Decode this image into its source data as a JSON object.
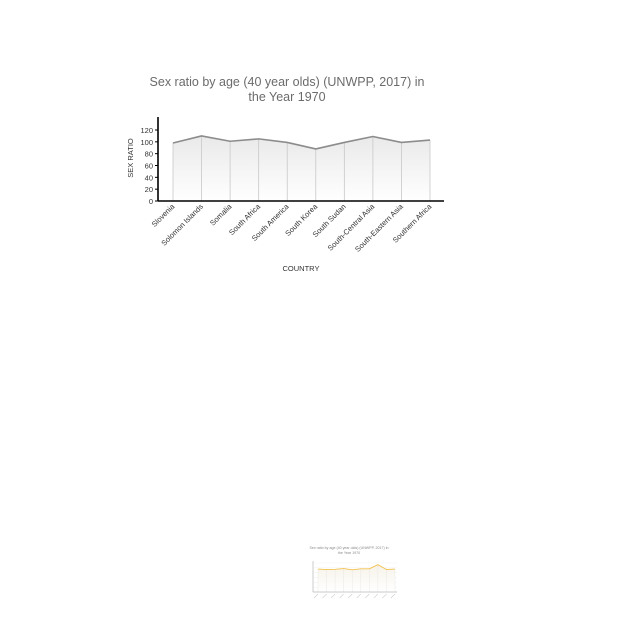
{
  "chart_data": [
    {
      "type": "area",
      "title": "Sex ratio by age (40 year olds) (UNWPP, 2017) in the Year 1970",
      "title_lines": [
        "Sex ratio by age (40 year olds) (UNWPP, 2017) in",
        "the Year 1970"
      ],
      "xlabel": "COUNTRY",
      "ylabel": "SEX RATIO",
      "categories": [
        "Slovenia",
        "Solomon Islands",
        "Somalia",
        "South Africa",
        "South America",
        "South Korea",
        "South Sudan",
        "South-Central Asia",
        "South-Eastern Asia",
        "Southern Africa"
      ],
      "series": [
        {
          "values": [
            98,
            110,
            101,
            105,
            99,
            88,
            99,
            109,
            99,
            103
          ]
        }
      ],
      "ylim": [
        0,
        120
      ],
      "yticks": [
        "0",
        "20",
        "40",
        "60",
        "80",
        "100",
        "120"
      ],
      "grid": false,
      "colors": {
        "line": "#8c8c8c",
        "fill_top": "#e9e9e9",
        "fill_bottom": "#ffffff",
        "axis": "#000000",
        "droplines": "#c8c8c8"
      }
    },
    {
      "type": "area",
      "title_lines": [
        "Sex ratio by age (40 year olds) (UNWPP, 2017) in",
        "the Year 1970"
      ],
      "categories": [
        "",
        "",
        "",
        "",
        "",
        "",
        "",
        "",
        "",
        ""
      ],
      "series": [
        {
          "values": [
            95,
            93,
            94,
            97,
            92,
            96,
            96,
            113,
            93,
            95
          ]
        }
      ],
      "ylim": [
        0,
        120
      ],
      "grid": true,
      "colors": {
        "line": "#f2c14e",
        "fill_top": "#f7f3ea",
        "fill_bottom": "#ffffff",
        "axis": "#999999",
        "droplines": "#dddddd"
      }
    }
  ]
}
